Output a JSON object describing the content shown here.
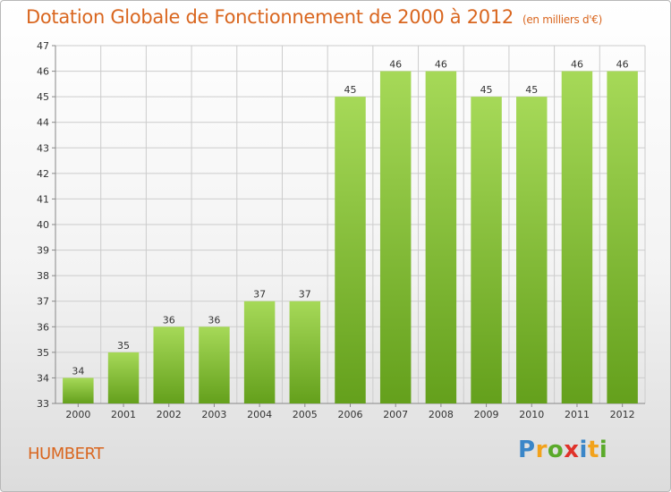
{
  "chart_title": "Dotation Globale de Fonctionnement de 2000 à 2012",
  "chart_subtitle": "(en milliers d'€)",
  "commune": "HUMBERT",
  "logo": {
    "letters": [
      "P",
      "r",
      "o",
      "x",
      "i",
      "t",
      "i"
    ],
    "colors": [
      "#3a86c8",
      "#f2a21c",
      "#5aaa2a",
      "#e0322a",
      "#3a86c8",
      "#f2a21c",
      "#5aaa2a"
    ]
  },
  "colors": {
    "bar_light": "#a6d958",
    "bar_dark": "#64a01c",
    "accent": "#d9661f",
    "grid": "#cccccc"
  },
  "chart_data": {
    "type": "bar",
    "title": "Dotation Globale de Fonctionnement de 2000 à 2012",
    "subtitle": "(en milliers d'€)",
    "categories": [
      "2000",
      "2001",
      "2002",
      "2003",
      "2004",
      "2005",
      "2006",
      "2007",
      "2008",
      "2009",
      "2010",
      "2011",
      "2012"
    ],
    "values": [
      34,
      35,
      36,
      36,
      37,
      37,
      45,
      46,
      46,
      45,
      45,
      46,
      46
    ],
    "ylim": [
      33,
      47
    ],
    "yticks": [
      33,
      34,
      35,
      36,
      37,
      38,
      39,
      40,
      41,
      42,
      43,
      44,
      45,
      46,
      47
    ],
    "xlabel": "",
    "ylabel": "",
    "grid": true,
    "data_labels": true
  }
}
